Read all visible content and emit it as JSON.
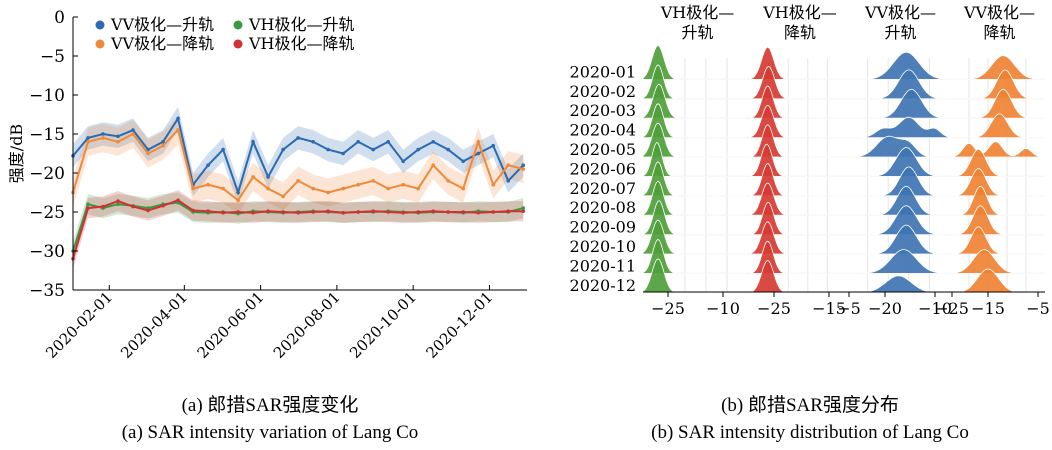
{
  "chart_data": [
    {
      "type": "line",
      "ylabel": "强度/dB",
      "ylim": [
        -35,
        0
      ],
      "yticks": [
        "0",
        "−5",
        "−10",
        "−15",
        "−20",
        "−25",
        "−30",
        "−35"
      ],
      "xticks": [
        "2020-02-01",
        "2020-04-01",
        "2020-06-01",
        "2020-08-01",
        "2020-10-01",
        "2020-12-01"
      ],
      "xlim": [
        "2020-01-03",
        "2020-12-31"
      ],
      "legend": {
        "position": "top",
        "entries": [
          "VV极化—升轨",
          "VH极化—升轨",
          "VV极化—降轨",
          "VH极化—降轨"
        ]
      },
      "series": [
        {
          "name": "VV极化—升轨",
          "color": "#2a6bb2",
          "band": 1.5,
          "x": [
            "2020-01-03",
            "2020-01-15",
            "2020-01-27",
            "2020-02-08",
            "2020-02-20",
            "2020-03-03",
            "2020-03-15",
            "2020-03-27",
            "2020-04-08",
            "2020-04-20",
            "2020-05-02",
            "2020-05-14",
            "2020-05-26",
            "2020-06-07",
            "2020-06-19",
            "2020-07-01",
            "2020-07-13",
            "2020-07-25",
            "2020-08-06",
            "2020-08-18",
            "2020-08-30",
            "2020-09-11",
            "2020-09-23",
            "2020-10-05",
            "2020-10-17",
            "2020-10-29",
            "2020-11-10",
            "2020-11-22",
            "2020-12-04",
            "2020-12-16",
            "2020-12-28"
          ],
          "values": [
            -17.8,
            -15.5,
            -15.0,
            -15.3,
            -14.5,
            -17.0,
            -16.0,
            -13.0,
            -21.5,
            -19.0,
            -17.0,
            -22.5,
            -16.0,
            -20.5,
            -17.0,
            -15.5,
            -16.0,
            -17.0,
            -17.5,
            -16.0,
            -17.0,
            -16.0,
            -18.5,
            -17.0,
            -16.0,
            -17.0,
            -18.5,
            -17.5,
            -16.5,
            -21.0,
            -19.0
          ]
        },
        {
          "name": "VV极化—降轨",
          "color": "#f08a3a",
          "band": 1.8,
          "x": [
            "2020-01-03",
            "2020-01-15",
            "2020-01-27",
            "2020-02-08",
            "2020-02-20",
            "2020-03-03",
            "2020-03-15",
            "2020-03-27",
            "2020-04-08",
            "2020-04-20",
            "2020-05-02",
            "2020-05-14",
            "2020-05-26",
            "2020-06-07",
            "2020-06-19",
            "2020-07-01",
            "2020-07-13",
            "2020-07-25",
            "2020-08-06",
            "2020-08-18",
            "2020-08-30",
            "2020-09-11",
            "2020-09-23",
            "2020-10-05",
            "2020-10-17",
            "2020-10-29",
            "2020-11-10",
            "2020-11-22",
            "2020-12-04",
            "2020-12-16",
            "2020-12-28"
          ],
          "values": [
            -22.5,
            -16.0,
            -15.5,
            -16.0,
            -15.0,
            -17.5,
            -16.5,
            -14.5,
            -22.0,
            -21.5,
            -22.0,
            -23.5,
            -20.5,
            -22.0,
            -23.0,
            -21.0,
            -22.0,
            -22.5,
            -22.0,
            -21.5,
            -21.0,
            -22.0,
            -21.5,
            -22.0,
            -19.0,
            -21.0,
            -22.0,
            -16.0,
            -21.5,
            -19.0,
            -19.5
          ]
        },
        {
          "name": "VH极化—升轨",
          "color": "#3a9a42",
          "band": 1.3,
          "x": [
            "2020-01-03",
            "2020-01-15",
            "2020-01-27",
            "2020-02-08",
            "2020-02-20",
            "2020-03-03",
            "2020-03-15",
            "2020-03-27",
            "2020-04-08",
            "2020-04-20",
            "2020-05-02",
            "2020-05-14",
            "2020-05-26",
            "2020-06-07",
            "2020-06-19",
            "2020-07-01",
            "2020-07-13",
            "2020-07-25",
            "2020-08-06",
            "2020-08-18",
            "2020-08-30",
            "2020-09-11",
            "2020-09-23",
            "2020-10-05",
            "2020-10-17",
            "2020-10-29",
            "2020-11-10",
            "2020-11-22",
            "2020-12-04",
            "2020-12-16",
            "2020-12-28"
          ],
          "values": [
            -30.0,
            -24.0,
            -24.5,
            -24.0,
            -24.2,
            -24.5,
            -24.0,
            -23.8,
            -25.0,
            -25.1,
            -25.0,
            -25.2,
            -24.9,
            -25.0,
            -25.1,
            -25.0,
            -24.9,
            -25.0,
            -25.1,
            -25.0,
            -25.0,
            -24.9,
            -25.0,
            -25.1,
            -25.0,
            -25.0,
            -25.1,
            -24.9,
            -25.0,
            -25.0,
            -24.5
          ]
        },
        {
          "name": "VH极化—降轨",
          "color": "#cf3135",
          "band": 1.3,
          "x": [
            "2020-01-03",
            "2020-01-15",
            "2020-01-27",
            "2020-02-08",
            "2020-02-20",
            "2020-03-03",
            "2020-03-15",
            "2020-03-27",
            "2020-04-08",
            "2020-04-20",
            "2020-05-02",
            "2020-05-14",
            "2020-05-26",
            "2020-06-07",
            "2020-06-19",
            "2020-07-01",
            "2020-07-13",
            "2020-07-25",
            "2020-08-06",
            "2020-08-18",
            "2020-08-30",
            "2020-09-11",
            "2020-09-23",
            "2020-10-05",
            "2020-10-17",
            "2020-10-29",
            "2020-11-10",
            "2020-11-22",
            "2020-12-04",
            "2020-12-16",
            "2020-12-28"
          ],
          "values": [
            -31.0,
            -24.5,
            -24.3,
            -23.6,
            -24.3,
            -24.8,
            -24.2,
            -23.5,
            -24.8,
            -24.9,
            -25.1,
            -25.0,
            -25.1,
            -24.9,
            -25.0,
            -25.1,
            -25.0,
            -24.9,
            -25.1,
            -25.0,
            -24.9,
            -25.0,
            -25.1,
            -25.0,
            -24.9,
            -25.0,
            -25.0,
            -25.1,
            -25.0,
            -24.9,
            -24.9
          ]
        }
      ]
    },
    {
      "type": "ridgeline",
      "columns": [
        {
          "label": [
            "VH极化—",
            "升轨"
          ],
          "color": "#4f9e3a",
          "range": [
            -28,
            -7
          ]
        },
        {
          "label": [
            "VH极化—",
            "降轨"
          ],
          "color": "#d63b32",
          "range": [
            -29,
            -8
          ]
        },
        {
          "label": [
            "VV极化—",
            "升轨"
          ],
          "color": "#3f74b3",
          "range": [
            -26,
            -6
          ]
        },
        {
          "label": [
            "VV极化—",
            "降轨"
          ],
          "color": "#ef8233",
          "range": [
            -29,
            -4
          ]
        }
      ],
      "column_ticks": [
        [
          "−25",
          "−10"
        ],
        [
          "−25",
          "−15"
        ],
        [
          "−5",
          "−20",
          "−10"
        ],
        [
          "−25",
          "−15",
          "−5"
        ]
      ],
      "months": [
        "2020-01",
        "2020-02",
        "2020-03",
        "2020-04",
        "2020-05",
        "2020-06",
        "2020-07",
        "2020-08",
        "2020-09",
        "2020-10",
        "2020-11",
        "2020-12"
      ],
      "distributions": [
        [
          [
            [
              -25,
              1.2,
              1.0
            ]
          ],
          [
            [
              -25,
              1.1,
              1.0
            ]
          ],
          [
            [
              -24.8,
              1.2,
              1.0
            ]
          ],
          [
            [
              -25,
              1.1,
              1.0
            ]
          ],
          [
            [
              -25,
              1.2,
              1.0
            ]
          ],
          [
            [
              -25.2,
              1.0,
              1.0
            ]
          ],
          [
            [
              -25,
              1.1,
              1.0
            ]
          ],
          [
            [
              -25,
              1.1,
              1.0
            ]
          ],
          [
            [
              -24.8,
              1.1,
              1.0
            ]
          ],
          [
            [
              -25,
              1.2,
              1.0
            ]
          ],
          [
            [
              -25,
              1.1,
              1.0
            ]
          ],
          [
            [
              -25,
              1.2,
              1.0
            ]
          ]
        ],
        [
          [
            [
              -25,
              1.3,
              0.95
            ]
          ],
          [
            [
              -24.8,
              1.3,
              0.95
            ]
          ],
          [
            [
              -25,
              1.2,
              0.95
            ]
          ],
          [
            [
              -25,
              1.3,
              0.95
            ]
          ],
          [
            [
              -25,
              1.2,
              0.95
            ]
          ],
          [
            [
              -25.2,
              1.2,
              0.95
            ]
          ],
          [
            [
              -25,
              1.2,
              0.95
            ]
          ],
          [
            [
              -25,
              1.3,
              0.95
            ]
          ],
          [
            [
              -24.9,
              1.2,
              0.95
            ]
          ],
          [
            [
              -25,
              1.3,
              0.95
            ]
          ],
          [
            [
              -25,
              1.2,
              0.95
            ]
          ],
          [
            [
              -25,
              1.3,
              0.95
            ]
          ]
        ],
        [
          [
            [
              -14.5,
              2.5,
              0.8
            ]
          ],
          [
            [
              -14,
              2.0,
              0.85
            ]
          ],
          [
            [
              -13.5,
              2.0,
              0.85
            ]
          ],
          [
            [
              -14,
              2.0,
              0.6
            ],
            [
              -19,
              1.5,
              0.25
            ],
            [
              -9,
              1.2,
              0.25
            ]
          ],
          [
            [
              -18,
              2.2,
              0.6
            ],
            [
              -14,
              1.5,
              0.35
            ]
          ],
          [
            [
              -14.5,
              2.0,
              0.85
            ]
          ],
          [
            [
              -14,
              1.8,
              0.85
            ]
          ],
          [
            [
              -14.5,
              1.8,
              0.85
            ]
          ],
          [
            [
              -14.5,
              2.0,
              0.85
            ]
          ],
          [
            [
              -14.5,
              2.0,
              0.85
            ]
          ],
          [
            [
              -15,
              2.5,
              0.7
            ]
          ],
          [
            [
              -16,
              2.5,
              0.5
            ]
          ]
        ],
        [
          [
            [
              -15,
              3.0,
              0.7
            ]
          ],
          [
            [
              -14.5,
              2.2,
              0.85
            ]
          ],
          [
            [
              -15,
              2.2,
              0.85
            ]
          ],
          [
            [
              -16,
              2.2,
              0.7
            ]
          ],
          [
            [
              -24,
              1.6,
              0.4
            ],
            [
              -17,
              1.8,
              0.45
            ],
            [
              -9,
              1.5,
              0.25
            ]
          ],
          [
            [
              -21.5,
              2.0,
              0.8
            ]
          ],
          [
            [
              -21.5,
              2.0,
              0.8
            ]
          ],
          [
            [
              -21,
              1.8,
              0.85
            ]
          ],
          [
            [
              -21,
              2.0,
              0.85
            ]
          ],
          [
            [
              -21.5,
              2.0,
              0.8
            ]
          ],
          [
            [
              -20,
              2.8,
              0.7
            ]
          ],
          [
            [
              -19,
              2.8,
              0.7
            ]
          ]
        ]
      ]
    }
  ],
  "captions": {
    "a_cn": "(a) 郎措SAR强度变化",
    "a_en": "(a) SAR intensity variation of Lang Co",
    "b_cn": "(b) 郎措SAR强度分布",
    "b_en": "(b) SAR intensity distribution of Lang Co"
  }
}
